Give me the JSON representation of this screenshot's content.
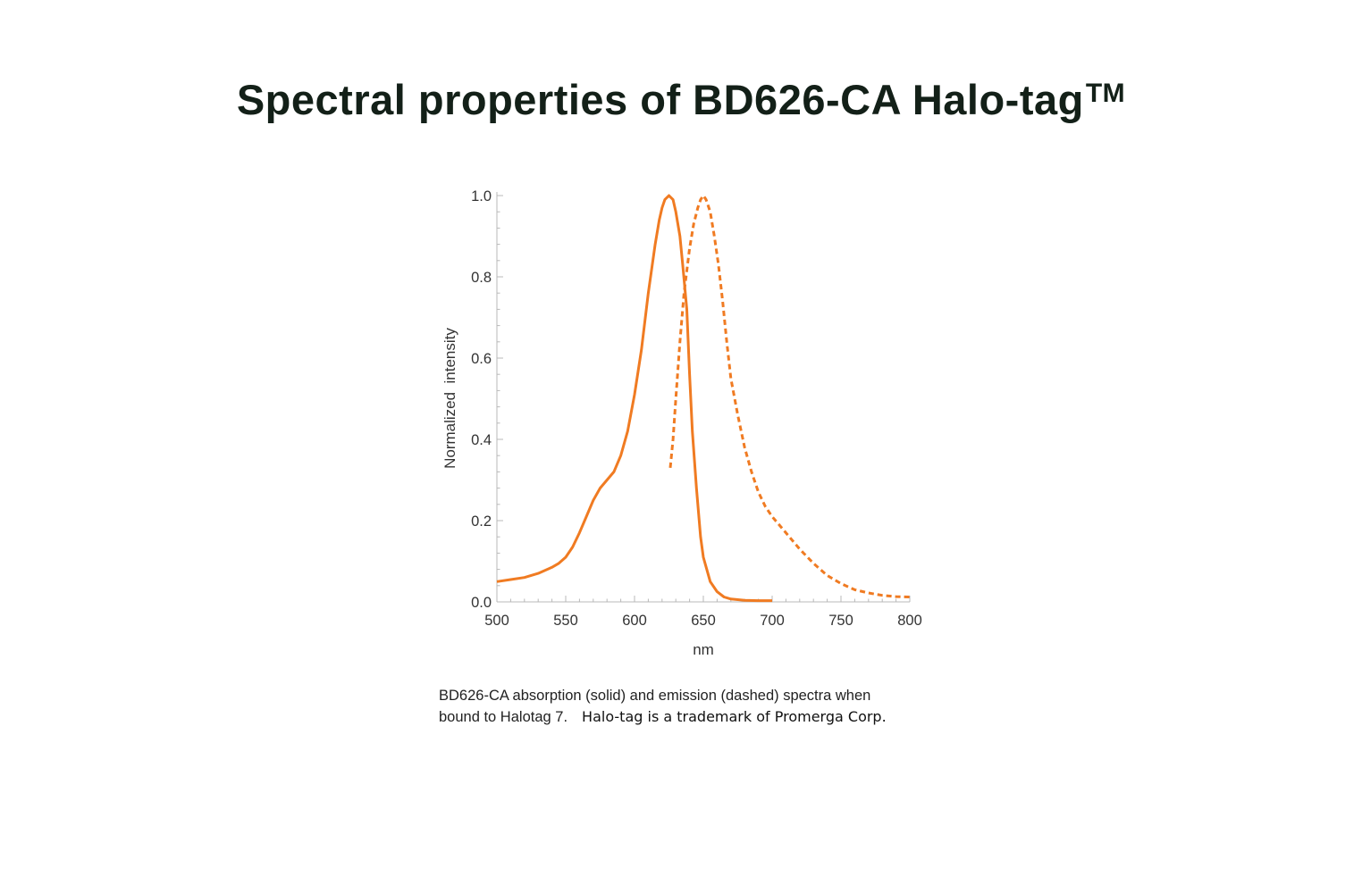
{
  "title": "Spectral properties of BD626-CA Halo-tag",
  "title_sup": "TM",
  "caption": {
    "line1": "BD626-CA absorption (solid) and emission (dashed) spectra when",
    "line2": "bound to Halotag 7.",
    "note": "Halo-tag is a trademark of Promerga Corp."
  },
  "chart_data": {
    "type": "line",
    "title": "",
    "xlabel": "nm",
    "ylabel": "Normalized  intensity",
    "xlim": [
      500,
      800
    ],
    "ylim": [
      0,
      1.0
    ],
    "xticks": [
      "500",
      "550",
      "600",
      "650",
      "700",
      "750",
      "800"
    ],
    "yticks": [
      "0.0",
      "0.2",
      "0.4",
      "0.6",
      "0.8",
      "1.0"
    ],
    "grid": false,
    "color": "#F07B22",
    "series": [
      {
        "style": "solid",
        "x": [
          500,
          510,
          520,
          530,
          540,
          545,
          550,
          555,
          560,
          565,
          570,
          575,
          580,
          585,
          590,
          595,
          600,
          605,
          610,
          615,
          618,
          620,
          622,
          625,
          628,
          630,
          633,
          635,
          638,
          640,
          642,
          645,
          648,
          650,
          655,
          660,
          665,
          670,
          680,
          690,
          700
        ],
        "y": [
          0.05,
          0.055,
          0.06,
          0.07,
          0.085,
          0.095,
          0.11,
          0.135,
          0.17,
          0.21,
          0.25,
          0.28,
          0.3,
          0.32,
          0.36,
          0.42,
          0.51,
          0.62,
          0.76,
          0.88,
          0.94,
          0.97,
          0.99,
          1.0,
          0.99,
          0.96,
          0.9,
          0.83,
          0.72,
          0.56,
          0.42,
          0.28,
          0.16,
          0.11,
          0.05,
          0.025,
          0.012,
          0.007,
          0.004,
          0.003,
          0.003
        ]
      },
      {
        "style": "dashed",
        "x": [
          626,
          628,
          630,
          633,
          636,
          640,
          643,
          646,
          648,
          650,
          652,
          655,
          658,
          661,
          664,
          667,
          670,
          675,
          680,
          685,
          690,
          695,
          700,
          710,
          720,
          730,
          740,
          750,
          760,
          770,
          780,
          790,
          800
        ],
        "y": [
          0.33,
          0.4,
          0.5,
          0.64,
          0.76,
          0.87,
          0.93,
          0.97,
          0.99,
          1.0,
          0.99,
          0.96,
          0.9,
          0.83,
          0.74,
          0.64,
          0.55,
          0.46,
          0.38,
          0.32,
          0.27,
          0.235,
          0.21,
          0.17,
          0.13,
          0.095,
          0.065,
          0.045,
          0.03,
          0.022,
          0.016,
          0.013,
          0.012
        ]
      }
    ]
  }
}
